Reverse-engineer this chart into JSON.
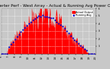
{
  "title": "Solar PV/Inverter Perf - West Array - Actual & Running Avg Power Output",
  "legend_labels": [
    "Actual Output",
    "Running Avg"
  ],
  "legend_colors": [
    "#ff0000",
    "#0000cc"
  ],
  "bg_color": "#c8c8c8",
  "plot_bg": "#c8c8c8",
  "area_color": "#ff0000",
  "dot_color": "#0000cc",
  "grid_color": "#ffffff",
  "ylim": [
    0,
    6
  ],
  "yticks": [
    1,
    2,
    3,
    4,
    5,
    6
  ],
  "ytick_labels": [
    "1",
    "2",
    "3",
    "4",
    "5",
    "6"
  ],
  "num_points": 144,
  "peak_index": 65,
  "peak_value": 5.6,
  "sigma": 32,
  "title_fontsize": 4.2,
  "tick_fontsize": 2.8,
  "legend_fontsize": 2.6,
  "xtick_labels": [
    "6",
    "7",
    "8",
    "9",
    "10",
    "11",
    "12",
    "13",
    "14",
    "15",
    "16",
    "17",
    "18",
    "19",
    "20"
  ],
  "xtick_count": 15
}
